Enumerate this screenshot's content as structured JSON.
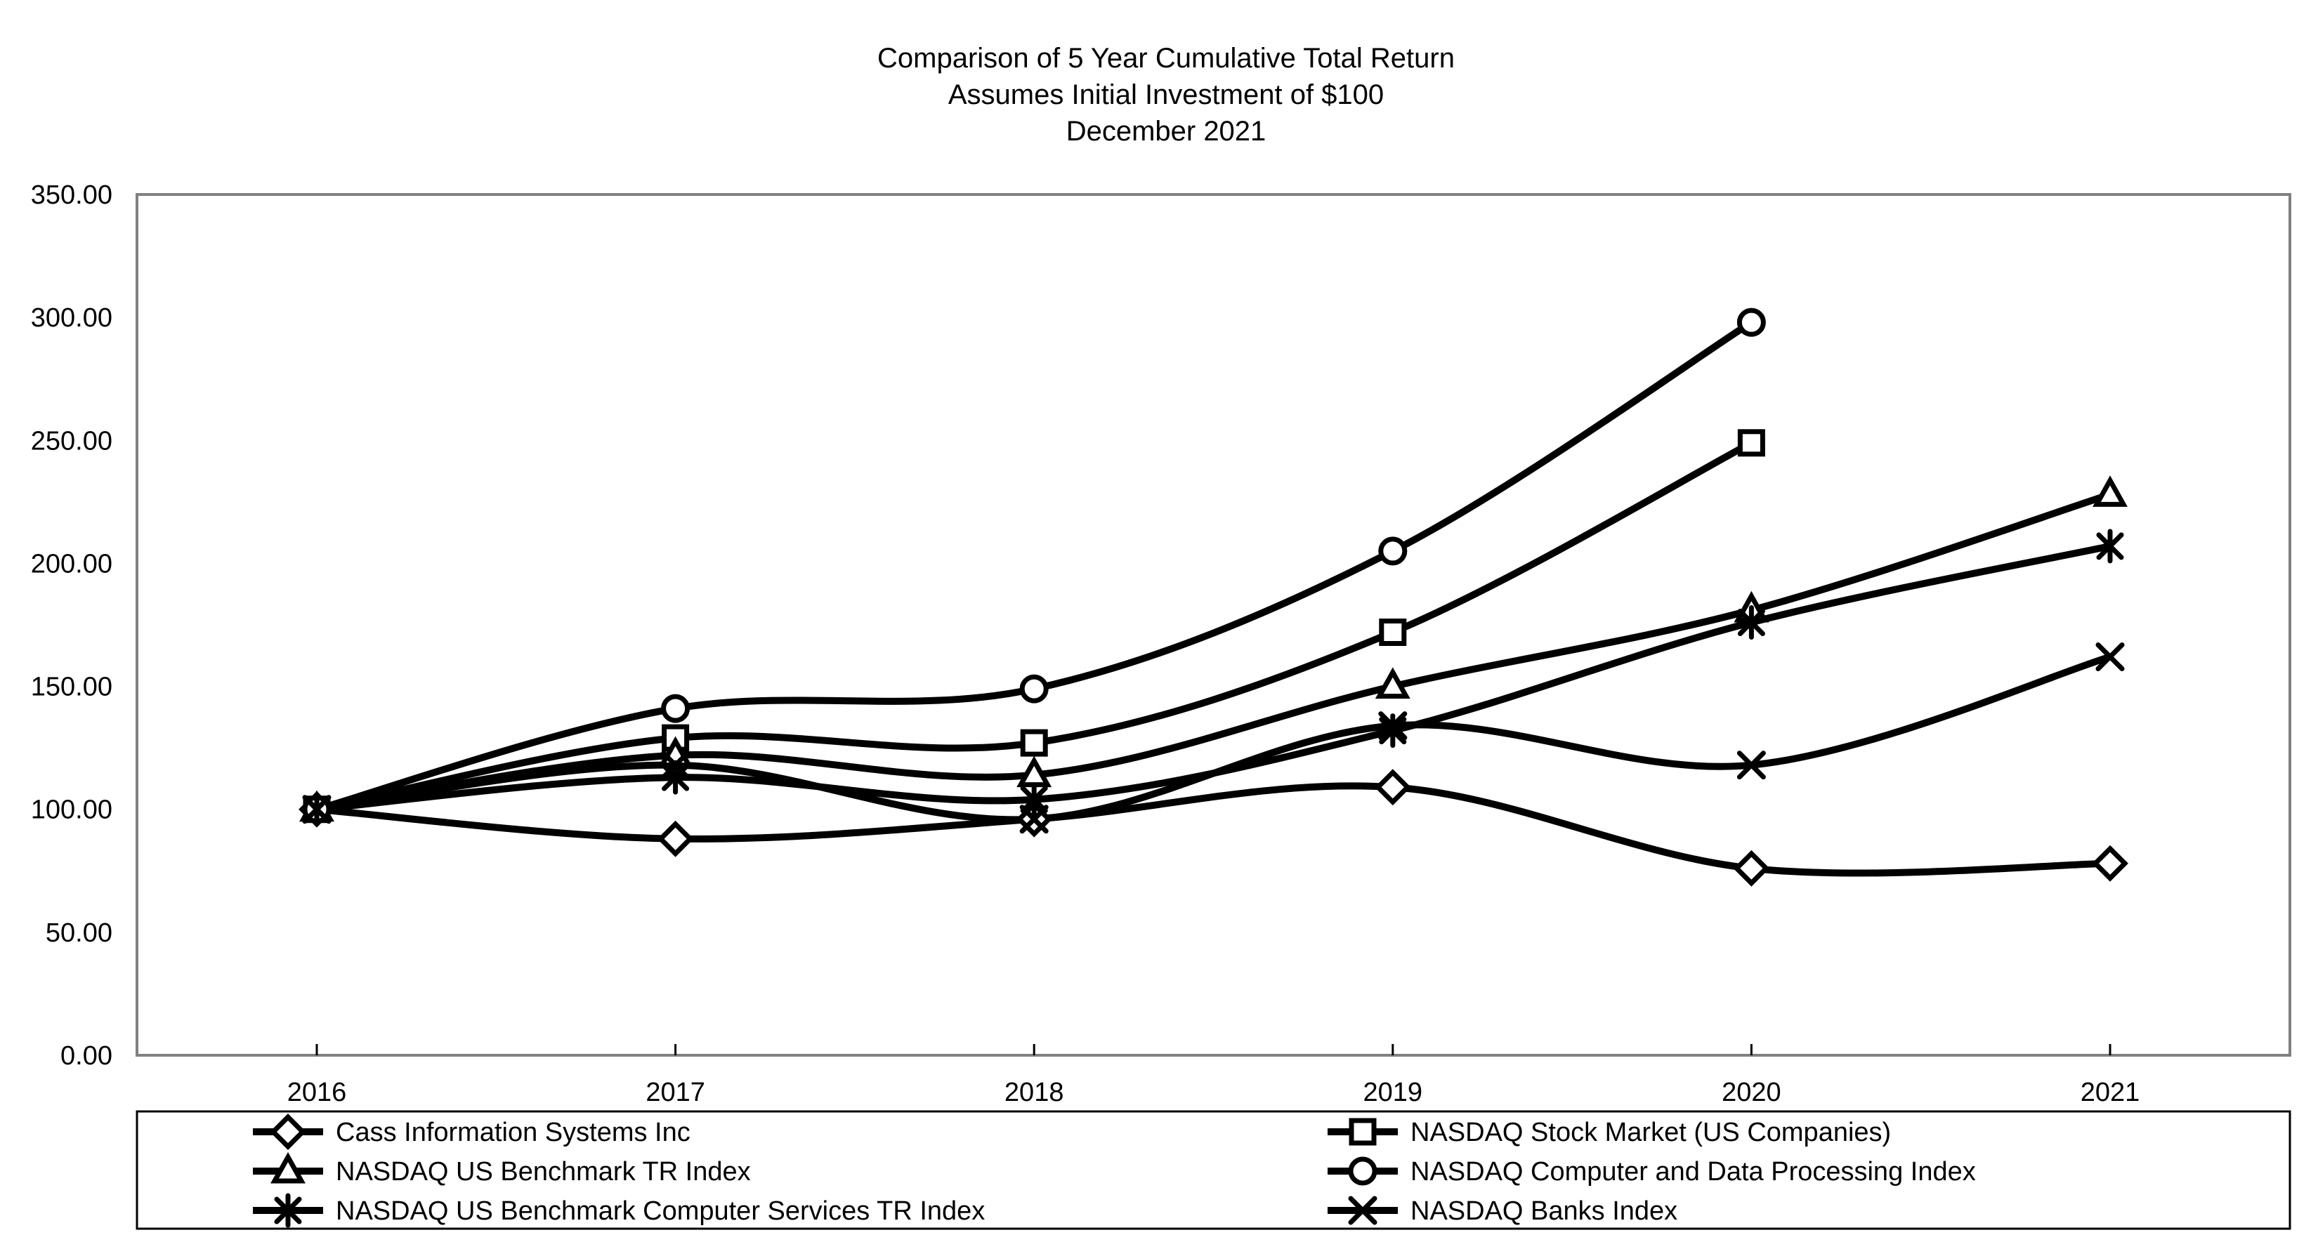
{
  "chart_data": {
    "type": "line",
    "title_lines": [
      "Comparison of 5 Year Cumulative Total Return",
      "Assumes Initial Investment of $100",
      "December 2021"
    ],
    "x_categories": [
      "2016",
      "2017",
      "2018",
      "2019",
      "2020",
      "2021"
    ],
    "y_axis": {
      "min": 0,
      "max": 350,
      "step": 50
    },
    "y_tick_labels": [
      "350.00",
      "300.00",
      "250.00",
      "200.00",
      "150.00",
      "100.00",
      "50.00",
      "0.00"
    ],
    "grid": false,
    "smooth_lines": true,
    "line_color": "#000000",
    "marker_fill": "#ffffff",
    "plot_border_color": "#808080",
    "legend_border_color": "#000000",
    "series": [
      {
        "name": "Cass Information Systems Inc",
        "marker": "diamond",
        "values": [
          100,
          88,
          96,
          109,
          76,
          78
        ]
      },
      {
        "name": "NASDAQ Stock Market (US Companies)",
        "marker": "square",
        "values": [
          100,
          129,
          127,
          172,
          249,
          null
        ]
      },
      {
        "name": "NASDAQ US Benchmark TR Index",
        "marker": "triangle",
        "values": [
          100,
          122,
          114,
          150,
          181,
          228
        ]
      },
      {
        "name": "NASDAQ Computer and Data Processing Index",
        "marker": "circle",
        "values": [
          100,
          141,
          149,
          205,
          298,
          null
        ]
      },
      {
        "name": "NASDAQ US Benchmark Computer Services TR Index",
        "marker": "asterisk",
        "values": [
          100,
          113,
          104,
          132,
          176,
          207
        ]
      },
      {
        "name": "NASDAQ Banks Index",
        "marker": "x",
        "values": [
          100,
          118,
          96,
          134,
          118,
          162
        ]
      }
    ],
    "legend": {
      "position": "bottom",
      "columns": [
        [
          0,
          2,
          4
        ],
        [
          1,
          3,
          5
        ]
      ]
    }
  }
}
